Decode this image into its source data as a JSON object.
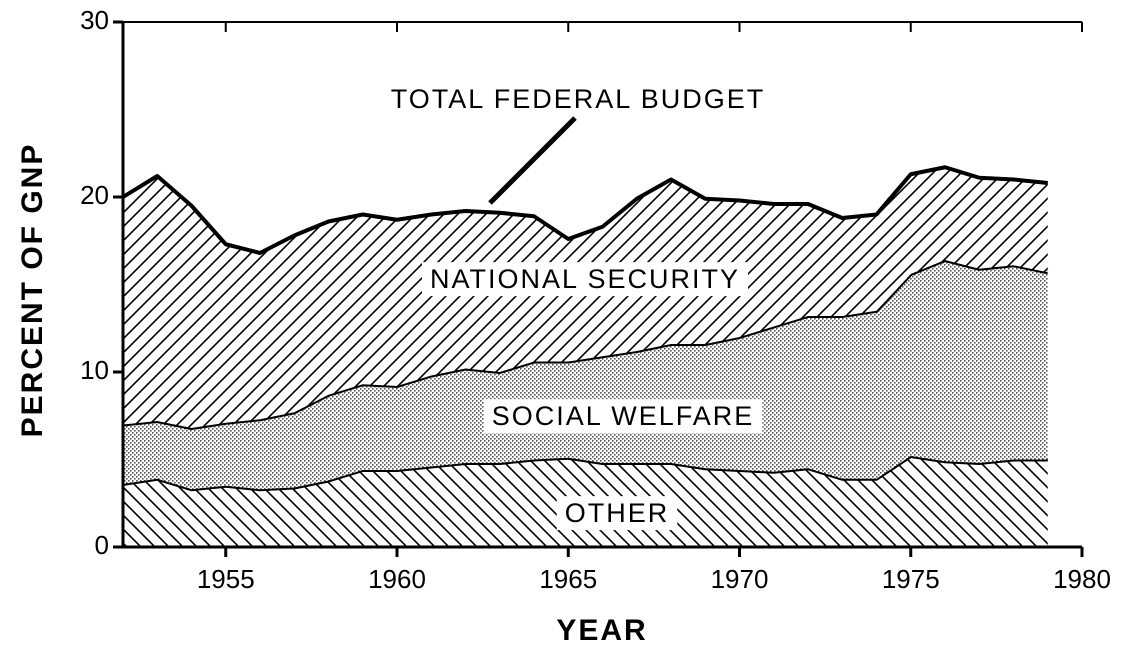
{
  "chart_data": {
    "type": "stacked_area",
    "x": [
      1952,
      1953,
      1954,
      1955,
      1956,
      1957,
      1958,
      1959,
      1960,
      1961,
      1962,
      1963,
      1964,
      1965,
      1966,
      1967,
      1968,
      1969,
      1970,
      1971,
      1972,
      1973,
      1974,
      1975,
      1976,
      1977,
      1978,
      1979
    ],
    "series": [
      {
        "name": "OTHER",
        "color": "#000000",
        "pattern": "hatch-back",
        "values": [
          3.6,
          3.9,
          3.3,
          3.5,
          3.3,
          3.4,
          3.8,
          4.4,
          4.4,
          4.6,
          4.8,
          4.8,
          5.0,
          5.1,
          4.8,
          4.8,
          4.8,
          4.5,
          4.4,
          4.3,
          4.5,
          3.9,
          3.9,
          5.2,
          4.9,
          4.8,
          5.0,
          5.0
        ]
      },
      {
        "name": "SOCIAL WELFARE",
        "color": "#000000",
        "pattern": "dots",
        "values": [
          3.4,
          3.3,
          3.5,
          3.6,
          4.0,
          4.3,
          4.9,
          4.9,
          4.8,
          5.2,
          5.4,
          5.2,
          5.6,
          5.5,
          6.1,
          6.4,
          6.8,
          7.1,
          7.6,
          8.3,
          8.7,
          9.3,
          9.6,
          10.4,
          11.5,
          11.1,
          11.1,
          10.7
        ]
      },
      {
        "name": "NATIONAL SECURITY",
        "color": "#000000",
        "pattern": "hatch-forward",
        "values": [
          13.0,
          14.0,
          12.7,
          10.2,
          9.5,
          10.1,
          9.9,
          9.7,
          9.5,
          9.2,
          9.0,
          9.1,
          8.3,
          7.0,
          7.4,
          8.7,
          9.4,
          8.3,
          7.8,
          7.0,
          6.4,
          5.6,
          5.5,
          5.7,
          5.3,
          5.2,
          4.9,
          5.1
        ]
      }
    ],
    "annotation": "TOTAL FEDERAL BUDGET",
    "xlabel": "YEAR",
    "ylabel": "PERCENT OF GNP",
    "xlim": [
      1952,
      1980
    ],
    "xticks": [
      1955,
      1960,
      1965,
      1970,
      1975,
      1980
    ],
    "ylim": [
      0,
      30
    ],
    "yticks": [
      0,
      10,
      20,
      30
    ]
  }
}
